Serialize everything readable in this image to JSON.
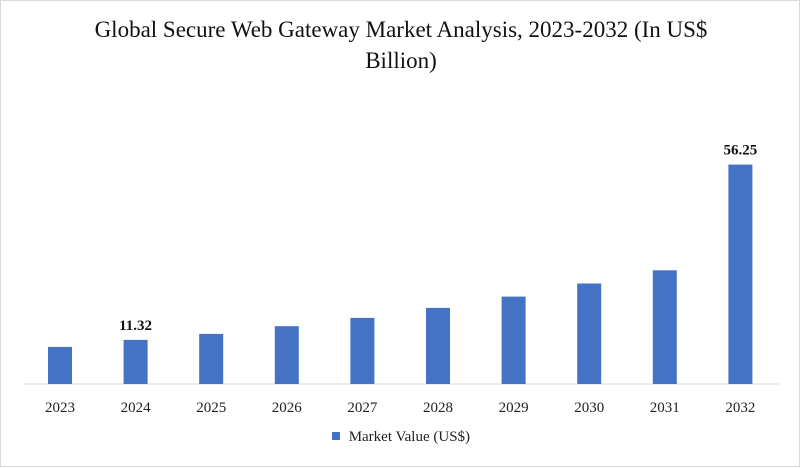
{
  "chart_data": {
    "type": "bar",
    "title": "Global Secure Web Gateway Market Analysis, 2023-2032 (In US$ Billion)",
    "categories": [
      "2023",
      "2024",
      "2025",
      "2026",
      "2027",
      "2028",
      "2029",
      "2030",
      "2031",
      "2032"
    ],
    "series": [
      {
        "name": "Market Value (US$)",
        "values": [
          9.51,
          11.32,
          12.84,
          14.82,
          16.95,
          19.52,
          22.4,
          25.78,
          29.15,
          56.25
        ],
        "color": "#4472c4"
      }
    ],
    "data_labels": {
      "2024": "11.32",
      "2032": "56.25"
    },
    "ylim": [
      0,
      60
    ],
    "grid": false,
    "legend_position": "bottom"
  }
}
